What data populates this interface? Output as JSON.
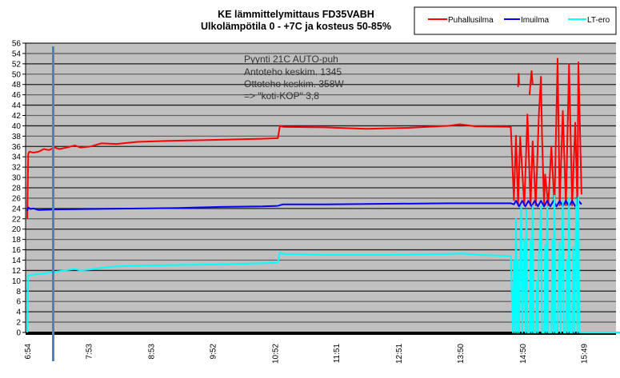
{
  "chart_data": {
    "type": "line",
    "title": [
      "KE lämmittelymittaus  FD35VABH",
      "Ulkolämpötila 0 - +7C ja kosteus 50-85%"
    ],
    "xlabel": "",
    "ylabel": "",
    "x_unit": "minutes since midnight",
    "xlim": [
      414,
      984
    ],
    "ylim": [
      0,
      56
    ],
    "y_ticks": [
      0,
      2,
      4,
      6,
      8,
      10,
      12,
      14,
      16,
      18,
      20,
      22,
      24,
      26,
      28,
      30,
      32,
      34,
      36,
      38,
      40,
      42,
      44,
      46,
      48,
      50,
      52,
      54,
      56
    ],
    "x_ticks": [
      {
        "t": 414,
        "label": "6:54"
      },
      {
        "t": 473,
        "label": "7:53"
      },
      {
        "t": 533,
        "label": "8:53"
      },
      {
        "t": 592,
        "label": "9:52"
      },
      {
        "t": 652,
        "label": "10:52"
      },
      {
        "t": 711,
        "label": "11:51"
      },
      {
        "t": 771,
        "label": "12:51"
      },
      {
        "t": 830,
        "label": "13:50"
      },
      {
        "t": 890,
        "label": "14:50"
      },
      {
        "t": 949,
        "label": "15:49"
      }
    ],
    "grid": true,
    "legend_position": "top-right",
    "marker_line_t": 439,
    "annotation": [
      "Pyynti 21C AUTO-puh",
      "Antoteho keskim. 1345",
      "Ottoteho keskim. 358W",
      "=> \"koti-KOP\" 3,8"
    ],
    "series": [
      {
        "name": "Puhallusilma",
        "color": "#ff0000",
        "points": [
          [
            414,
            22
          ],
          [
            415,
            34.5
          ],
          [
            416,
            35
          ],
          [
            420,
            34.8
          ],
          [
            425,
            35
          ],
          [
            430,
            35.5
          ],
          [
            435,
            35.3
          ],
          [
            440,
            35.8
          ],
          [
            445,
            35.5
          ],
          [
            450,
            35.7
          ],
          [
            460,
            36.2
          ],
          [
            465,
            35.8
          ],
          [
            475,
            36
          ],
          [
            485,
            36.6
          ],
          [
            500,
            36.5
          ],
          [
            520,
            36.9
          ],
          [
            550,
            37.1
          ],
          [
            600,
            37.3
          ],
          [
            640,
            37.5
          ],
          [
            655,
            37.6
          ],
          [
            657,
            40
          ],
          [
            660,
            39.8
          ],
          [
            700,
            39.7
          ],
          [
            740,
            39.4
          ],
          [
            780,
            39.6
          ],
          [
            820,
            40
          ],
          [
            830,
            40.3
          ],
          [
            845,
            39.9
          ],
          [
            879,
            39.8
          ],
          [
            882,
            25.6
          ],
          [
            884,
            38.1
          ],
          [
            886,
            24.6
          ],
          [
            888,
            37.9
          ],
          [
            892,
            24.6
          ],
          [
            895,
            42.2
          ],
          [
            898,
            24.6
          ],
          [
            900,
            37
          ],
          [
            903,
            24.6
          ],
          [
            906,
            42.2
          ],
          [
            908,
            49.5
          ],
          [
            909,
            38.3
          ],
          [
            911,
            24.6
          ],
          [
            912,
            30.6
          ],
          [
            915,
            24.6
          ],
          [
            918,
            36
          ],
          [
            921,
            24.6
          ],
          [
            924,
            53
          ],
          [
            926,
            24.6
          ],
          [
            929,
            42.9
          ],
          [
            932,
            24.6
          ],
          [
            935,
            51.9
          ],
          [
            938,
            24.6
          ],
          [
            941,
            40.6
          ],
          [
            943,
            24.6
          ],
          [
            944,
            52.3
          ],
          [
            947,
            26.7
          ]
        ],
        "extra_segments": [
          [
            [
              886,
              47.5
            ],
            [
              886.5,
              50.2
            ],
            [
              887,
              48
            ]
          ],
          [
            [
              897,
              46
            ],
            [
              899,
              50.7
            ],
            [
              900,
              48
            ]
          ]
        ]
      },
      {
        "name": "Imuilma",
        "color": "#0000ff",
        "points": [
          [
            414,
            23.5
          ],
          [
            415,
            24.2
          ],
          [
            417,
            23.9
          ],
          [
            420,
            24
          ],
          [
            425,
            23.7
          ],
          [
            440,
            23.8
          ],
          [
            480,
            23.9
          ],
          [
            520,
            24
          ],
          [
            560,
            24.1
          ],
          [
            600,
            24.3
          ],
          [
            640,
            24.4
          ],
          [
            655,
            24.5
          ],
          [
            660,
            24.8
          ],
          [
            700,
            24.8
          ],
          [
            760,
            24.9
          ],
          [
            820,
            25
          ],
          [
            879,
            25
          ],
          [
            882,
            24.8
          ],
          [
            884,
            25.5
          ],
          [
            887,
            24.4
          ],
          [
            890,
            25.5
          ],
          [
            893,
            24.4
          ],
          [
            896,
            25.5
          ],
          [
            899,
            24.4
          ],
          [
            902,
            25.5
          ],
          [
            905,
            24.4
          ],
          [
            908,
            25.5
          ],
          [
            911,
            24.4
          ],
          [
            914,
            25.5
          ],
          [
            917,
            24.4
          ],
          [
            920,
            25.5
          ],
          [
            923,
            24.4
          ],
          [
            926,
            25.5
          ],
          [
            929,
            24.4
          ],
          [
            932,
            25.5
          ],
          [
            935,
            24.4
          ],
          [
            938,
            25.5
          ],
          [
            941,
            24.4
          ],
          [
            944,
            25.5
          ],
          [
            947,
            24.8
          ]
        ]
      },
      {
        "name": "LT-ero",
        "color": "#00ffff",
        "points": [
          [
            414,
            0
          ],
          [
            415,
            11
          ],
          [
            420,
            11.2
          ],
          [
            430,
            11.4
          ],
          [
            440,
            11.7
          ],
          [
            450,
            12
          ],
          [
            460,
            12.3
          ],
          [
            465,
            12
          ],
          [
            475,
            12.2
          ],
          [
            485,
            12.5
          ],
          [
            500,
            12.8
          ],
          [
            540,
            13
          ],
          [
            600,
            13.2
          ],
          [
            640,
            13.4
          ],
          [
            655,
            13.5
          ],
          [
            657,
            15.5
          ],
          [
            660,
            15.2
          ],
          [
            700,
            15
          ],
          [
            760,
            15
          ],
          [
            820,
            15.2
          ],
          [
            830,
            15.3
          ],
          [
            850,
            15
          ],
          [
            879,
            14.8
          ],
          [
            881,
            0
          ],
          [
            882,
            14
          ],
          [
            883,
            0
          ],
          [
            884,
            22
          ],
          [
            885,
            0
          ],
          [
            886,
            14
          ],
          [
            887,
            0
          ],
          [
            889,
            24.4
          ],
          [
            890,
            0
          ],
          [
            892,
            18
          ],
          [
            893,
            0
          ],
          [
            894,
            23.8
          ],
          [
            895,
            0
          ],
          [
            897,
            0
          ],
          [
            898,
            18
          ],
          [
            899,
            0
          ],
          [
            900,
            24.5
          ],
          [
            901,
            0
          ],
          [
            903,
            0
          ],
          [
            904,
            10
          ],
          [
            905,
            0
          ],
          [
            906,
            15
          ],
          [
            907,
            18
          ],
          [
            908,
            24.5
          ],
          [
            909,
            0
          ],
          [
            911,
            0
          ],
          [
            912,
            17
          ],
          [
            913,
            0
          ],
          [
            914,
            24.3
          ],
          [
            915,
            0
          ],
          [
            918,
            0
          ],
          [
            919,
            18
          ],
          [
            920,
            0
          ],
          [
            921,
            26.5
          ],
          [
            922,
            0
          ],
          [
            924,
            0
          ],
          [
            926,
            17.5
          ],
          [
            927,
            0
          ],
          [
            929,
            25.5
          ],
          [
            930,
            0
          ],
          [
            932,
            0
          ],
          [
            933,
            14
          ],
          [
            934,
            0
          ],
          [
            935,
            26
          ],
          [
            936,
            0
          ],
          [
            938,
            0
          ],
          [
            939,
            16.5
          ],
          [
            940,
            0
          ],
          [
            942,
            25.8
          ],
          [
            943,
            0
          ],
          [
            944,
            26.2
          ],
          [
            945,
            0
          ],
          [
            947,
            0
          ],
          [
            984,
            0
          ]
        ]
      }
    ]
  }
}
